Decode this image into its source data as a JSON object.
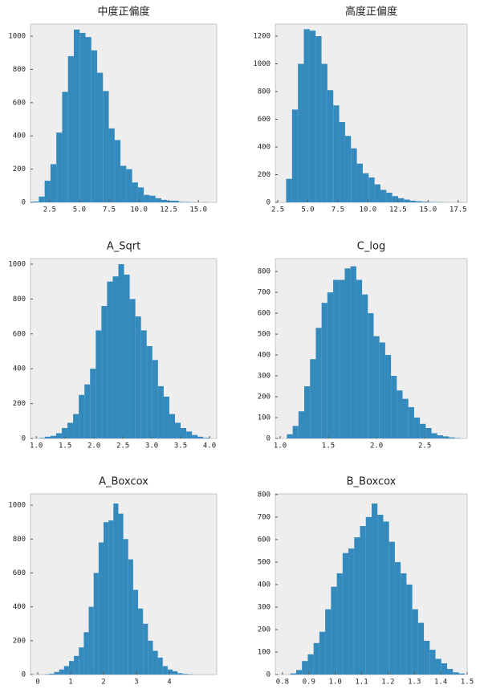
{
  "chart_data": [
    {
      "type": "histogram",
      "title": "中度正偏度",
      "color": "#348abd",
      "bins": [
        1.1,
        1.59,
        2.08,
        2.57,
        3.06,
        3.55,
        4.04,
        4.53,
        5.02,
        5.51,
        6.0,
        6.49,
        6.98,
        7.47,
        7.96,
        8.45,
        8.94,
        9.43,
        9.92,
        10.41,
        10.9,
        11.39,
        11.88,
        12.37,
        12.86,
        13.35,
        13.84,
        14.33,
        14.82,
        15.31,
        15.8
      ],
      "values": [
        5,
        35,
        130,
        230,
        420,
        665,
        880,
        1040,
        1020,
        995,
        915,
        780,
        670,
        445,
        375,
        220,
        200,
        120,
        90,
        45,
        40,
        25,
        15,
        10,
        10,
        3,
        2,
        1,
        0,
        1
      ],
      "xlim": [
        0.89,
        16.54
      ],
      "ylim": [
        0,
        1073
      ],
      "xticks": [
        2.5,
        {
          "value": 5,
          "label": "5.0"
        },
        7.5,
        {
          "value": 10,
          "label": "10.0"
        },
        12.5,
        {
          "value": 15,
          "label": "15.0"
        }
      ],
      "yticks": [
        0,
        200,
        400,
        600,
        800,
        1000
      ]
    },
    {
      "type": "histogram",
      "title": "高度正偏度",
      "color": "#348abd",
      "bins": [
        3.2,
        3.69,
        4.18,
        4.67,
        5.16,
        5.65,
        6.14,
        6.63,
        7.12,
        7.61,
        8.1,
        8.59,
        9.08,
        9.57,
        10.06,
        10.55,
        11.04,
        11.53,
        12.02,
        12.51,
        13.0,
        13.49,
        13.98,
        14.47,
        14.96,
        15.45,
        15.94,
        16.43,
        16.92,
        17.41,
        17.9
      ],
      "values": [
        170,
        670,
        1000,
        1250,
        1240,
        1200,
        1000,
        810,
        700,
        580,
        480,
        390,
        280,
        210,
        180,
        130,
        90,
        70,
        45,
        30,
        20,
        12,
        8,
        5,
        3,
        2,
        1,
        0,
        0,
        1
      ],
      "xlim": [
        2.3,
        18.25
      ],
      "ylim": [
        0,
        1287
      ],
      "xticks": [
        2.5,
        {
          "value": 5,
          "label": "5.0"
        },
        7.5,
        {
          "value": 10,
          "label": "10.0"
        },
        12.5,
        {
          "value": 15,
          "label": "15.0"
        },
        17.5
      ],
      "yticks": [
        0,
        200,
        400,
        600,
        800,
        1000,
        1200
      ]
    },
    {
      "type": "histogram",
      "title": "A_Sqrt",
      "color": "#348abd",
      "bins": [
        1.05,
        1.148,
        1.246,
        1.344,
        1.442,
        1.54,
        1.638,
        1.736,
        1.834,
        1.932,
        2.03,
        2.128,
        2.226,
        2.324,
        2.422,
        2.52,
        2.618,
        2.716,
        2.814,
        2.912,
        3.01,
        3.108,
        3.206,
        3.304,
        3.402,
        3.5,
        3.598,
        3.696,
        3.794,
        3.892,
        3.99
      ],
      "values": [
        3,
        10,
        15,
        30,
        60,
        90,
        140,
        250,
        310,
        400,
        620,
        760,
        900,
        930,
        1000,
        940,
        800,
        700,
        620,
        530,
        450,
        300,
        240,
        140,
        90,
        60,
        40,
        20,
        10,
        3
      ],
      "xlim": [
        0.9,
        4.125
      ],
      "ylim": [
        0,
        1032
      ],
      "xticks": [
        {
          "value": 1,
          "label": "1.0"
        },
        1.5,
        {
          "value": 2,
          "label": "2.0"
        },
        2.5,
        {
          "value": 3,
          "label": "3.0"
        },
        3.5,
        {
          "value": 4,
          "label": "4.0"
        }
      ],
      "yticks": [
        0,
        200,
        400,
        600,
        800,
        1000
      ]
    },
    {
      "type": "histogram",
      "title": "C_log",
      "color": "#348abd",
      "bins": [
        1.07,
        1.13,
        1.19,
        1.25,
        1.31,
        1.37,
        1.43,
        1.49,
        1.55,
        1.61,
        1.67,
        1.73,
        1.79,
        1.85,
        1.91,
        1.97,
        2.03,
        2.09,
        2.15,
        2.21,
        2.27,
        2.33,
        2.39,
        2.45,
        2.51,
        2.57,
        2.63,
        2.69,
        2.75,
        2.81,
        2.87
      ],
      "values": [
        20,
        60,
        130,
        250,
        380,
        530,
        650,
        700,
        760,
        760,
        815,
        825,
        760,
        690,
        600,
        490,
        460,
        400,
        300,
        230,
        190,
        150,
        100,
        70,
        50,
        25,
        15,
        10,
        5,
        2
      ],
      "xlim": [
        0.95,
        2.94
      ],
      "ylim": [
        0,
        862
      ],
      "xticks": [
        {
          "value": 1,
          "label": "1.0"
        },
        1.5,
        {
          "value": 2,
          "label": "2.0"
        },
        2.5
      ],
      "yticks": [
        0,
        100,
        200,
        300,
        400,
        500,
        600,
        700,
        800
      ]
    },
    {
      "type": "histogram",
      "title": "A_Boxcox",
      "color": "#348abd",
      "bins": [
        0.2,
        0.35,
        0.5,
        0.65,
        0.8,
        0.95,
        1.1,
        1.25,
        1.4,
        1.55,
        1.7,
        1.85,
        2.0,
        2.15,
        2.3,
        2.45,
        2.6,
        2.75,
        2.9,
        3.05,
        3.2,
        3.35,
        3.5,
        3.65,
        3.8,
        3.95,
        4.1,
        4.25,
        4.4,
        4.55,
        4.7
      ],
      "values": [
        2,
        5,
        15,
        30,
        50,
        80,
        110,
        160,
        250,
        400,
        600,
        780,
        900,
        910,
        1010,
        950,
        800,
        680,
        500,
        390,
        300,
        200,
        140,
        100,
        50,
        30,
        20,
        8,
        4,
        2
      ],
      "xlim": [
        -0.22,
        5.44
      ],
      "ylim": [
        0,
        1067
      ],
      "xticks": [
        0,
        1,
        2,
        3,
        4
      ],
      "yticks": [
        0,
        200,
        400,
        600,
        800,
        1000
      ]
    },
    {
      "type": "histogram",
      "title": "B_Boxcox",
      "color": "#348abd",
      "bins": [
        0.83,
        0.852,
        0.874,
        0.896,
        0.918,
        0.94,
        0.962,
        0.984,
        1.006,
        1.028,
        1.05,
        1.072,
        1.094,
        1.116,
        1.138,
        1.16,
        1.182,
        1.204,
        1.226,
        1.248,
        1.27,
        1.292,
        1.314,
        1.336,
        1.358,
        1.38,
        1.402,
        1.424,
        1.446,
        1.468,
        1.49
      ],
      "values": [
        5,
        20,
        60,
        90,
        140,
        190,
        290,
        390,
        450,
        540,
        560,
        610,
        660,
        700,
        760,
        710,
        680,
        590,
        500,
        450,
        400,
        290,
        230,
        150,
        110,
        70,
        50,
        25,
        10,
        5
      ],
      "xlim": [
        0.773,
        1.5
      ],
      "ylim": [
        0,
        803
      ],
      "xticks": [
        0.8,
        0.9,
        {
          "value": 1,
          "label": "1.0"
        },
        1.1,
        1.2,
        1.3,
        1.4,
        1.5
      ],
      "yticks": [
        0,
        100,
        200,
        300,
        400,
        500,
        600,
        700,
        800
      ]
    }
  ]
}
